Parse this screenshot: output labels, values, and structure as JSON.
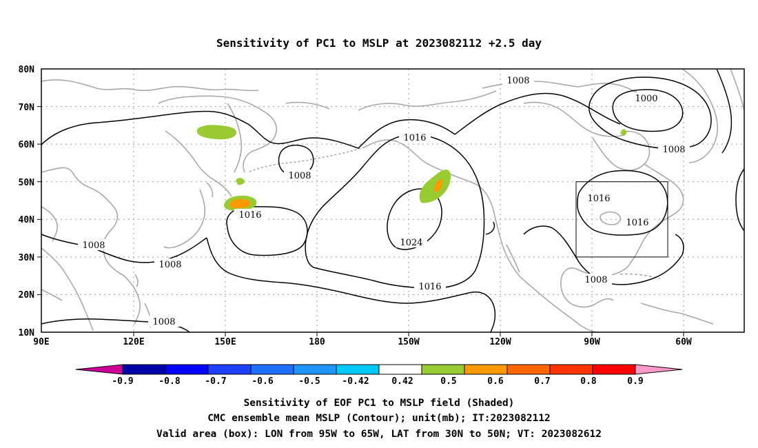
{
  "title": "Sensitivity of PC1 to MSLP at 2023082112 +2.5 day",
  "map": {
    "lon_range": [
      "90E",
      "85W"
    ],
    "lat_range": [
      "10N",
      "80N"
    ],
    "lat_ticks": [
      "10N",
      "20N",
      "30N",
      "40N",
      "50N",
      "60N",
      "70N",
      "80N"
    ],
    "lon_ticks": [
      "90E",
      "120E",
      "150E",
      "180",
      "150W",
      "120W",
      "90W",
      "60W"
    ],
    "grid": "dotted",
    "coastline_color": "#a8a8a8",
    "contour_color": "#000000"
  },
  "contour_labels": [
    {
      "text": "1008",
      "pos": "top center-right"
    },
    {
      "text": "1000",
      "pos": "top right"
    },
    {
      "text": "1008",
      "pos": "upper right"
    },
    {
      "text": "1016",
      "pos": "upper center"
    },
    {
      "text": "1008",
      "pos": "upper left-center"
    },
    {
      "text": "1016",
      "pos": "left center"
    },
    {
      "text": "1024",
      "pos": "center"
    },
    {
      "text": "1016",
      "pos": "lower center"
    },
    {
      "text": "1008",
      "pos": "left"
    },
    {
      "text": "1008",
      "pos": "lower left"
    },
    {
      "text": "1008",
      "pos": "bottom left"
    },
    {
      "text": "1016",
      "pos": "right box top"
    },
    {
      "text": "1016",
      "pos": "right box"
    },
    {
      "text": "1008",
      "pos": "lower right"
    }
  ],
  "shaded_colors": {
    "c042_05": "#99cc33",
    "c05_06": "#ff9900"
  },
  "valid_box": {
    "lon": [
      "95W",
      "65W"
    ],
    "lat": [
      "30N",
      "50N"
    ]
  },
  "colorbar": {
    "labels": [
      "-0.9",
      "-0.8",
      "-0.7",
      "-0.6",
      "-0.5",
      "-0.42",
      "0.42",
      "0.5",
      "0.6",
      "0.7",
      "0.8",
      "0.9"
    ],
    "colors": [
      "#cc0099",
      "#0000aa",
      "#0000ff",
      "#1f3fff",
      "#1e6fff",
      "#1e96ff",
      "#00c8ff",
      "#ffffff",
      "#99cc33",
      "#ff9900",
      "#ff6600",
      "#ff3300",
      "#ff0000",
      "#ff99cc"
    ]
  },
  "captions": [
    "Sensitivity of EOF PC1 to MSLP field (Shaded)",
    "CMC ensemble mean MSLP (Contour); unit(mb); IT:2023082112",
    "Valid area (box): LON from 95W to 65W, LAT from 30N to 50N; VT: 2023082612"
  ]
}
